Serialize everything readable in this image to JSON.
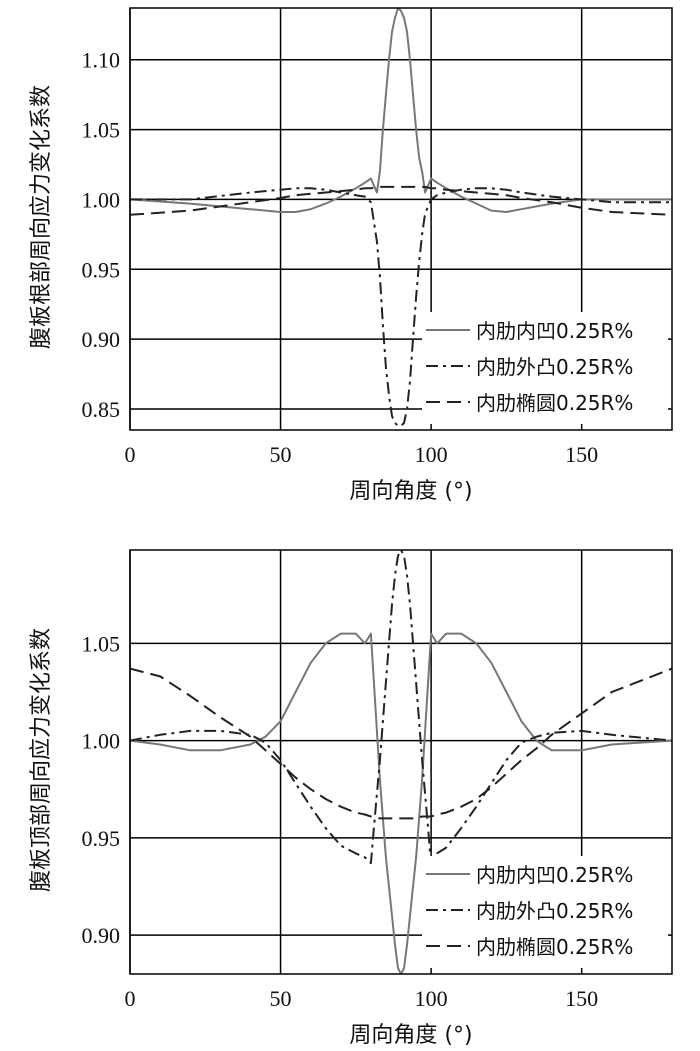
{
  "chart_data": [
    {
      "type": "line",
      "xlabel": "周向角度 (°)",
      "ylabel": "腹板根部周向应力变化系数",
      "xlim": [
        0,
        180
      ],
      "ylim": [
        0.835,
        1.137
      ],
      "xticks": [
        0,
        50,
        100,
        150
      ],
      "yticks": [
        0.85,
        0.9,
        0.95,
        1.0,
        1.05,
        1.1
      ],
      "ytick_labels": [
        "0.85",
        "0.90",
        "0.95",
        "1.00",
        "1.05",
        "1.10"
      ],
      "grid": true,
      "legend_position": "bottom-right",
      "series": [
        {
          "name": "内肋内凹0.25R%",
          "style": "solid",
          "color": "#777777",
          "x": [
            0,
            20,
            40,
            50,
            55,
            60,
            65,
            70,
            75,
            78,
            80,
            82,
            83,
            84,
            85,
            86,
            87,
            88,
            89,
            90,
            91,
            92,
            93,
            94,
            95,
            96,
            97,
            98,
            100,
            102,
            105,
            110,
            115,
            120,
            125,
            130,
            140,
            150,
            160,
            180
          ],
          "y": [
            1.0,
            0.997,
            0.993,
            0.991,
            0.991,
            0.993,
            0.997,
            1.002,
            1.008,
            1.012,
            1.015,
            1.005,
            1.02,
            1.05,
            1.075,
            1.1,
            1.12,
            1.13,
            1.137,
            1.135,
            1.13,
            1.12,
            1.1,
            1.075,
            1.05,
            1.03,
            1.02,
            1.005,
            1.015,
            1.012,
            1.008,
            1.002,
            0.997,
            0.992,
            0.991,
            0.993,
            0.997,
            1.0,
            1.0,
            1.0
          ]
        },
        {
          "name": "内肋外凸0.25R%",
          "style": "dashdot",
          "color": "#222222",
          "x": [
            0,
            20,
            40,
            50,
            55,
            60,
            65,
            70,
            75,
            78,
            80,
            82,
            83,
            84,
            85,
            86,
            87,
            88,
            89,
            90,
            91,
            92,
            93,
            94,
            95,
            96,
            97,
            98,
            100,
            102,
            105,
            110,
            115,
            120,
            125,
            130,
            140,
            150,
            160,
            180
          ],
          "y": [
            1.0,
            1.0,
            1.005,
            1.007,
            1.008,
            1.008,
            1.007,
            1.005,
            1.003,
            1.002,
            0.998,
            0.97,
            0.945,
            0.91,
            0.88,
            0.86,
            0.845,
            0.84,
            0.838,
            0.838,
            0.84,
            0.85,
            0.87,
            0.9,
            0.93,
            0.955,
            0.975,
            0.99,
            1.0,
            1.003,
            1.005,
            1.007,
            1.008,
            1.008,
            1.007,
            1.005,
            1.002,
            1.0,
            0.998,
            0.998
          ]
        },
        {
          "name": "内肋椭圆0.25R%",
          "style": "dashed",
          "color": "#222222",
          "x": [
            0,
            20,
            40,
            50,
            55,
            60,
            65,
            70,
            75,
            78,
            80,
            82,
            83,
            84,
            85,
            86,
            87,
            88,
            89,
            90,
            91,
            92,
            93,
            94,
            95,
            96,
            97,
            98,
            100,
            102,
            105,
            110,
            115,
            120,
            125,
            130,
            140,
            150,
            160,
            180
          ],
          "y": [
            0.989,
            0.992,
            0.998,
            1.001,
            1.003,
            1.004,
            1.005,
            1.006,
            1.007,
            1.008,
            1.008,
            1.009,
            1.009,
            1.009,
            1.009,
            1.009,
            1.009,
            1.009,
            1.009,
            1.009,
            1.009,
            1.009,
            1.009,
            1.009,
            1.009,
            1.009,
            1.009,
            1.009,
            1.008,
            1.008,
            1.007,
            1.006,
            1.005,
            1.004,
            1.003,
            1.001,
            0.998,
            0.994,
            0.991,
            0.989
          ]
        }
      ]
    },
    {
      "type": "line",
      "xlabel": "周向角度 (°)",
      "ylabel": "腹板顶部周向应力变化系数",
      "xlim": [
        0,
        180
      ],
      "ylim": [
        0.88,
        1.098
      ],
      "xticks": [
        0,
        50,
        100,
        150
      ],
      "yticks": [
        0.9,
        0.95,
        1.0,
        1.05
      ],
      "ytick_labels": [
        "0.90",
        "0.95",
        "1.00",
        "1.05"
      ],
      "grid": true,
      "legend_position": "bottom-right",
      "series": [
        {
          "name": "内肋内凹0.25R%",
          "style": "solid",
          "color": "#777777",
          "x": [
            0,
            10,
            20,
            30,
            40,
            45,
            50,
            55,
            60,
            65,
            70,
            75,
            78,
            80,
            81,
            83,
            85,
            87,
            88,
            89,
            90,
            91,
            92,
            93,
            95,
            97,
            99,
            100,
            102,
            105,
            110,
            115,
            120,
            125,
            130,
            135,
            140,
            150,
            160,
            180
          ],
          "y": [
            1.0,
            0.998,
            0.995,
            0.995,
            0.998,
            1.002,
            1.01,
            1.025,
            1.04,
            1.05,
            1.055,
            1.055,
            1.05,
            1.055,
            1.03,
            0.98,
            0.94,
            0.91,
            0.895,
            0.883,
            0.88,
            0.883,
            0.895,
            0.91,
            0.94,
            0.98,
            1.03,
            1.055,
            1.05,
            1.055,
            1.055,
            1.05,
            1.04,
            1.025,
            1.01,
            1.0,
            0.995,
            0.995,
            0.998,
            1.0
          ]
        },
        {
          "name": "内肋外凸0.25R%",
          "style": "dashdot",
          "color": "#222222",
          "x": [
            0,
            10,
            20,
            30,
            40,
            45,
            50,
            55,
            60,
            65,
            70,
            75,
            78,
            80,
            81,
            83,
            85,
            87,
            88,
            89,
            90,
            91,
            92,
            93,
            95,
            97,
            99,
            100,
            102,
            105,
            110,
            115,
            120,
            125,
            130,
            135,
            140,
            150,
            160,
            180
          ],
          "y": [
            1.0,
            1.003,
            1.005,
            1.005,
            1.003,
            0.999,
            0.99,
            0.978,
            0.966,
            0.955,
            0.946,
            0.942,
            0.94,
            0.937,
            0.955,
            0.99,
            1.03,
            1.07,
            1.085,
            1.095,
            1.098,
            1.095,
            1.085,
            1.07,
            1.03,
            0.99,
            0.955,
            0.935,
            0.942,
            0.945,
            0.955,
            0.966,
            0.978,
            0.99,
            0.999,
            1.002,
            1.004,
            1.005,
            1.003,
            1.0
          ]
        },
        {
          "name": "内肋椭圆0.25R%",
          "style": "dashed",
          "color": "#222222",
          "x": [
            0,
            10,
            20,
            30,
            40,
            45,
            50,
            55,
            60,
            65,
            70,
            75,
            78,
            80,
            81,
            83,
            85,
            87,
            88,
            89,
            90,
            91,
            92,
            93,
            95,
            97,
            99,
            100,
            102,
            105,
            110,
            115,
            120,
            125,
            130,
            135,
            140,
            150,
            160,
            180
          ],
          "y": [
            1.037,
            1.033,
            1.023,
            1.012,
            1.002,
            0.995,
            0.988,
            0.981,
            0.975,
            0.97,
            0.966,
            0.963,
            0.962,
            0.961,
            0.961,
            0.96,
            0.96,
            0.96,
            0.96,
            0.96,
            0.96,
            0.96,
            0.96,
            0.96,
            0.96,
            0.961,
            0.961,
            0.961,
            0.962,
            0.963,
            0.966,
            0.97,
            0.976,
            0.983,
            0.99,
            0.996,
            1.003,
            1.014,
            1.025,
            1.037
          ]
        }
      ]
    }
  ]
}
